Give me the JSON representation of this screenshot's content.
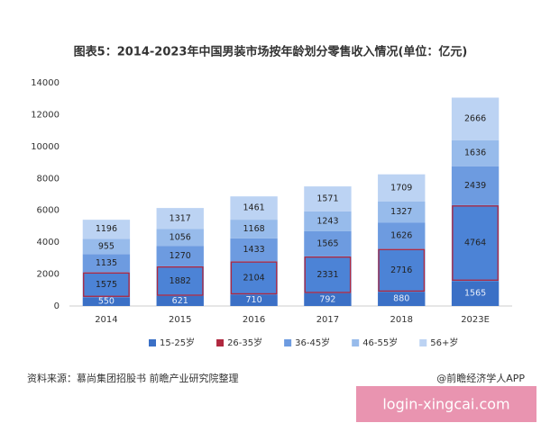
{
  "chart_data": {
    "type": "stacked_bar",
    "title": "图表5：2014-2023年中国男装市场按年龄划分零售收入情况(单位：亿元)",
    "categories": [
      "2014",
      "2015",
      "2016",
      "2017",
      "2018",
      "2023E"
    ],
    "series": [
      {
        "name": "15-25岁",
        "color": "#3b70c6",
        "values": [
          550,
          621,
          710,
          792,
          880,
          1565
        ]
      },
      {
        "name": "26-35岁",
        "color": "#4c83d6",
        "values": [
          1575,
          1882,
          2104,
          2331,
          2716,
          4764
        ]
      },
      {
        "name": "36-45岁",
        "color": "#6d9be0",
        "values": [
          1135,
          1270,
          1433,
          1565,
          1626,
          2439
        ]
      },
      {
        "name": "46-55岁",
        "color": "#97bbeb",
        "values": [
          955,
          1056,
          1168,
          1243,
          1327,
          1636
        ]
      },
      {
        "name": "56+岁",
        "color": "#bcd3f3",
        "values": [
          1196,
          1317,
          1461,
          1571,
          1709,
          2666
        ]
      }
    ],
    "highlight_series": 1,
    "highlight_color": "#b0283f",
    "ylim": [
      0,
      14000
    ],
    "yticks": [
      0,
      2000,
      4000,
      6000,
      8000,
      10000,
      12000,
      14000
    ],
    "grid": false
  },
  "source": "资料来源：慕尚集团招股书 前瞻产业研究院整理",
  "credit": "@前瞻经济学人APP",
  "watermark": "login-xingcai.com"
}
